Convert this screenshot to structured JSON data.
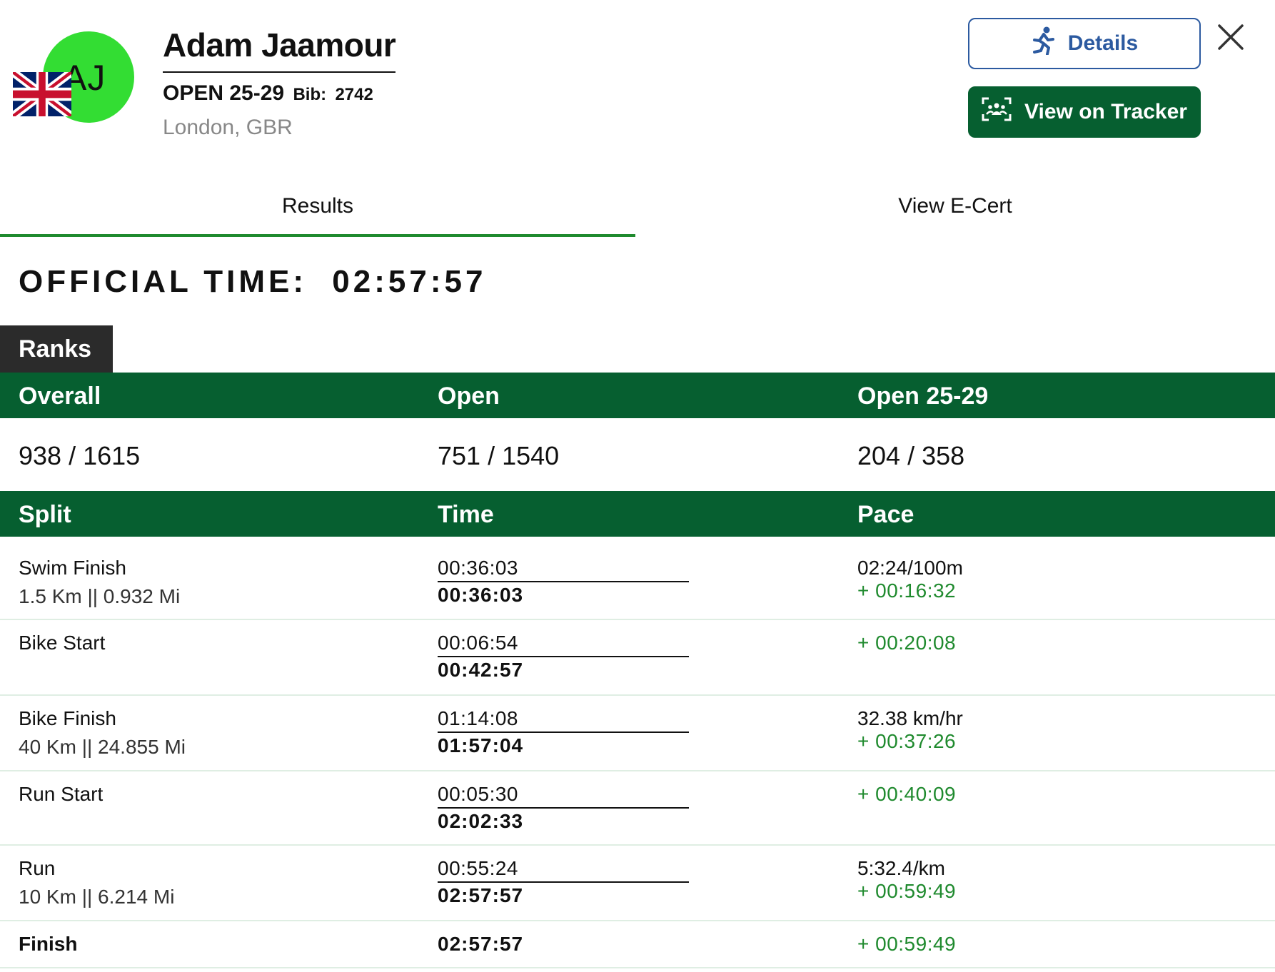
{
  "athlete": {
    "initials": "AJ",
    "name": "Adam Jaamour",
    "category": "OPEN 25-29",
    "bib_label": "Bib:",
    "bib": "2742",
    "location": "London, GBR",
    "avatar_color": "#33dd33",
    "flag_icon": "uk-flag-icon"
  },
  "buttons": {
    "details": "Details",
    "tracker": "View on Tracker",
    "close_icon": "close-icon"
  },
  "tabs": {
    "results": "Results",
    "ecert": "View E-Cert"
  },
  "official_time": {
    "label": "OFFICIAL TIME:",
    "value": "02:57:57"
  },
  "ranks": {
    "title": "Ranks",
    "headers": [
      "Overall",
      "Open",
      "Open 25-29"
    ],
    "values": [
      "938 / 1615",
      "751 / 1540",
      "204 / 358"
    ]
  },
  "splits_header": [
    "Split",
    "Time",
    "Pace"
  ],
  "splits": [
    {
      "name": "Swim Finish",
      "distance": "1.5 Km || 0.932 Mi",
      "split_time": "00:36:03",
      "cumulative": "00:36:03",
      "pace": "02:24/100m",
      "gap": "+ 00:16:32"
    },
    {
      "name": "Bike Start",
      "distance": "",
      "split_time": "00:06:54",
      "cumulative": "00:42:57",
      "pace": "",
      "gap": "+ 00:20:08"
    },
    {
      "name": "Bike Finish",
      "distance": "40 Km || 24.855 Mi",
      "split_time": "01:14:08",
      "cumulative": "01:57:04",
      "pace": "32.38 km/hr",
      "gap": "+ 00:37:26"
    },
    {
      "name": "Run Start",
      "distance": "",
      "split_time": "00:05:30",
      "cumulative": "02:02:33",
      "pace": "",
      "gap": "+ 00:40:09"
    },
    {
      "name": "Run",
      "distance": "10 Km || 6.214 Mi",
      "split_time": "00:55:24",
      "cumulative": "02:57:57",
      "pace": "5:32.4/km",
      "gap": "+ 00:59:49"
    },
    {
      "name": "Finish",
      "distance": "",
      "split_time": "",
      "cumulative": "02:57:57",
      "pace": "",
      "gap": "+ 00:59:49"
    }
  ],
  "colors": {
    "primary_green": "#065f30",
    "accent_green": "#1f8a2e",
    "details_blue": "#2c5aa0"
  }
}
